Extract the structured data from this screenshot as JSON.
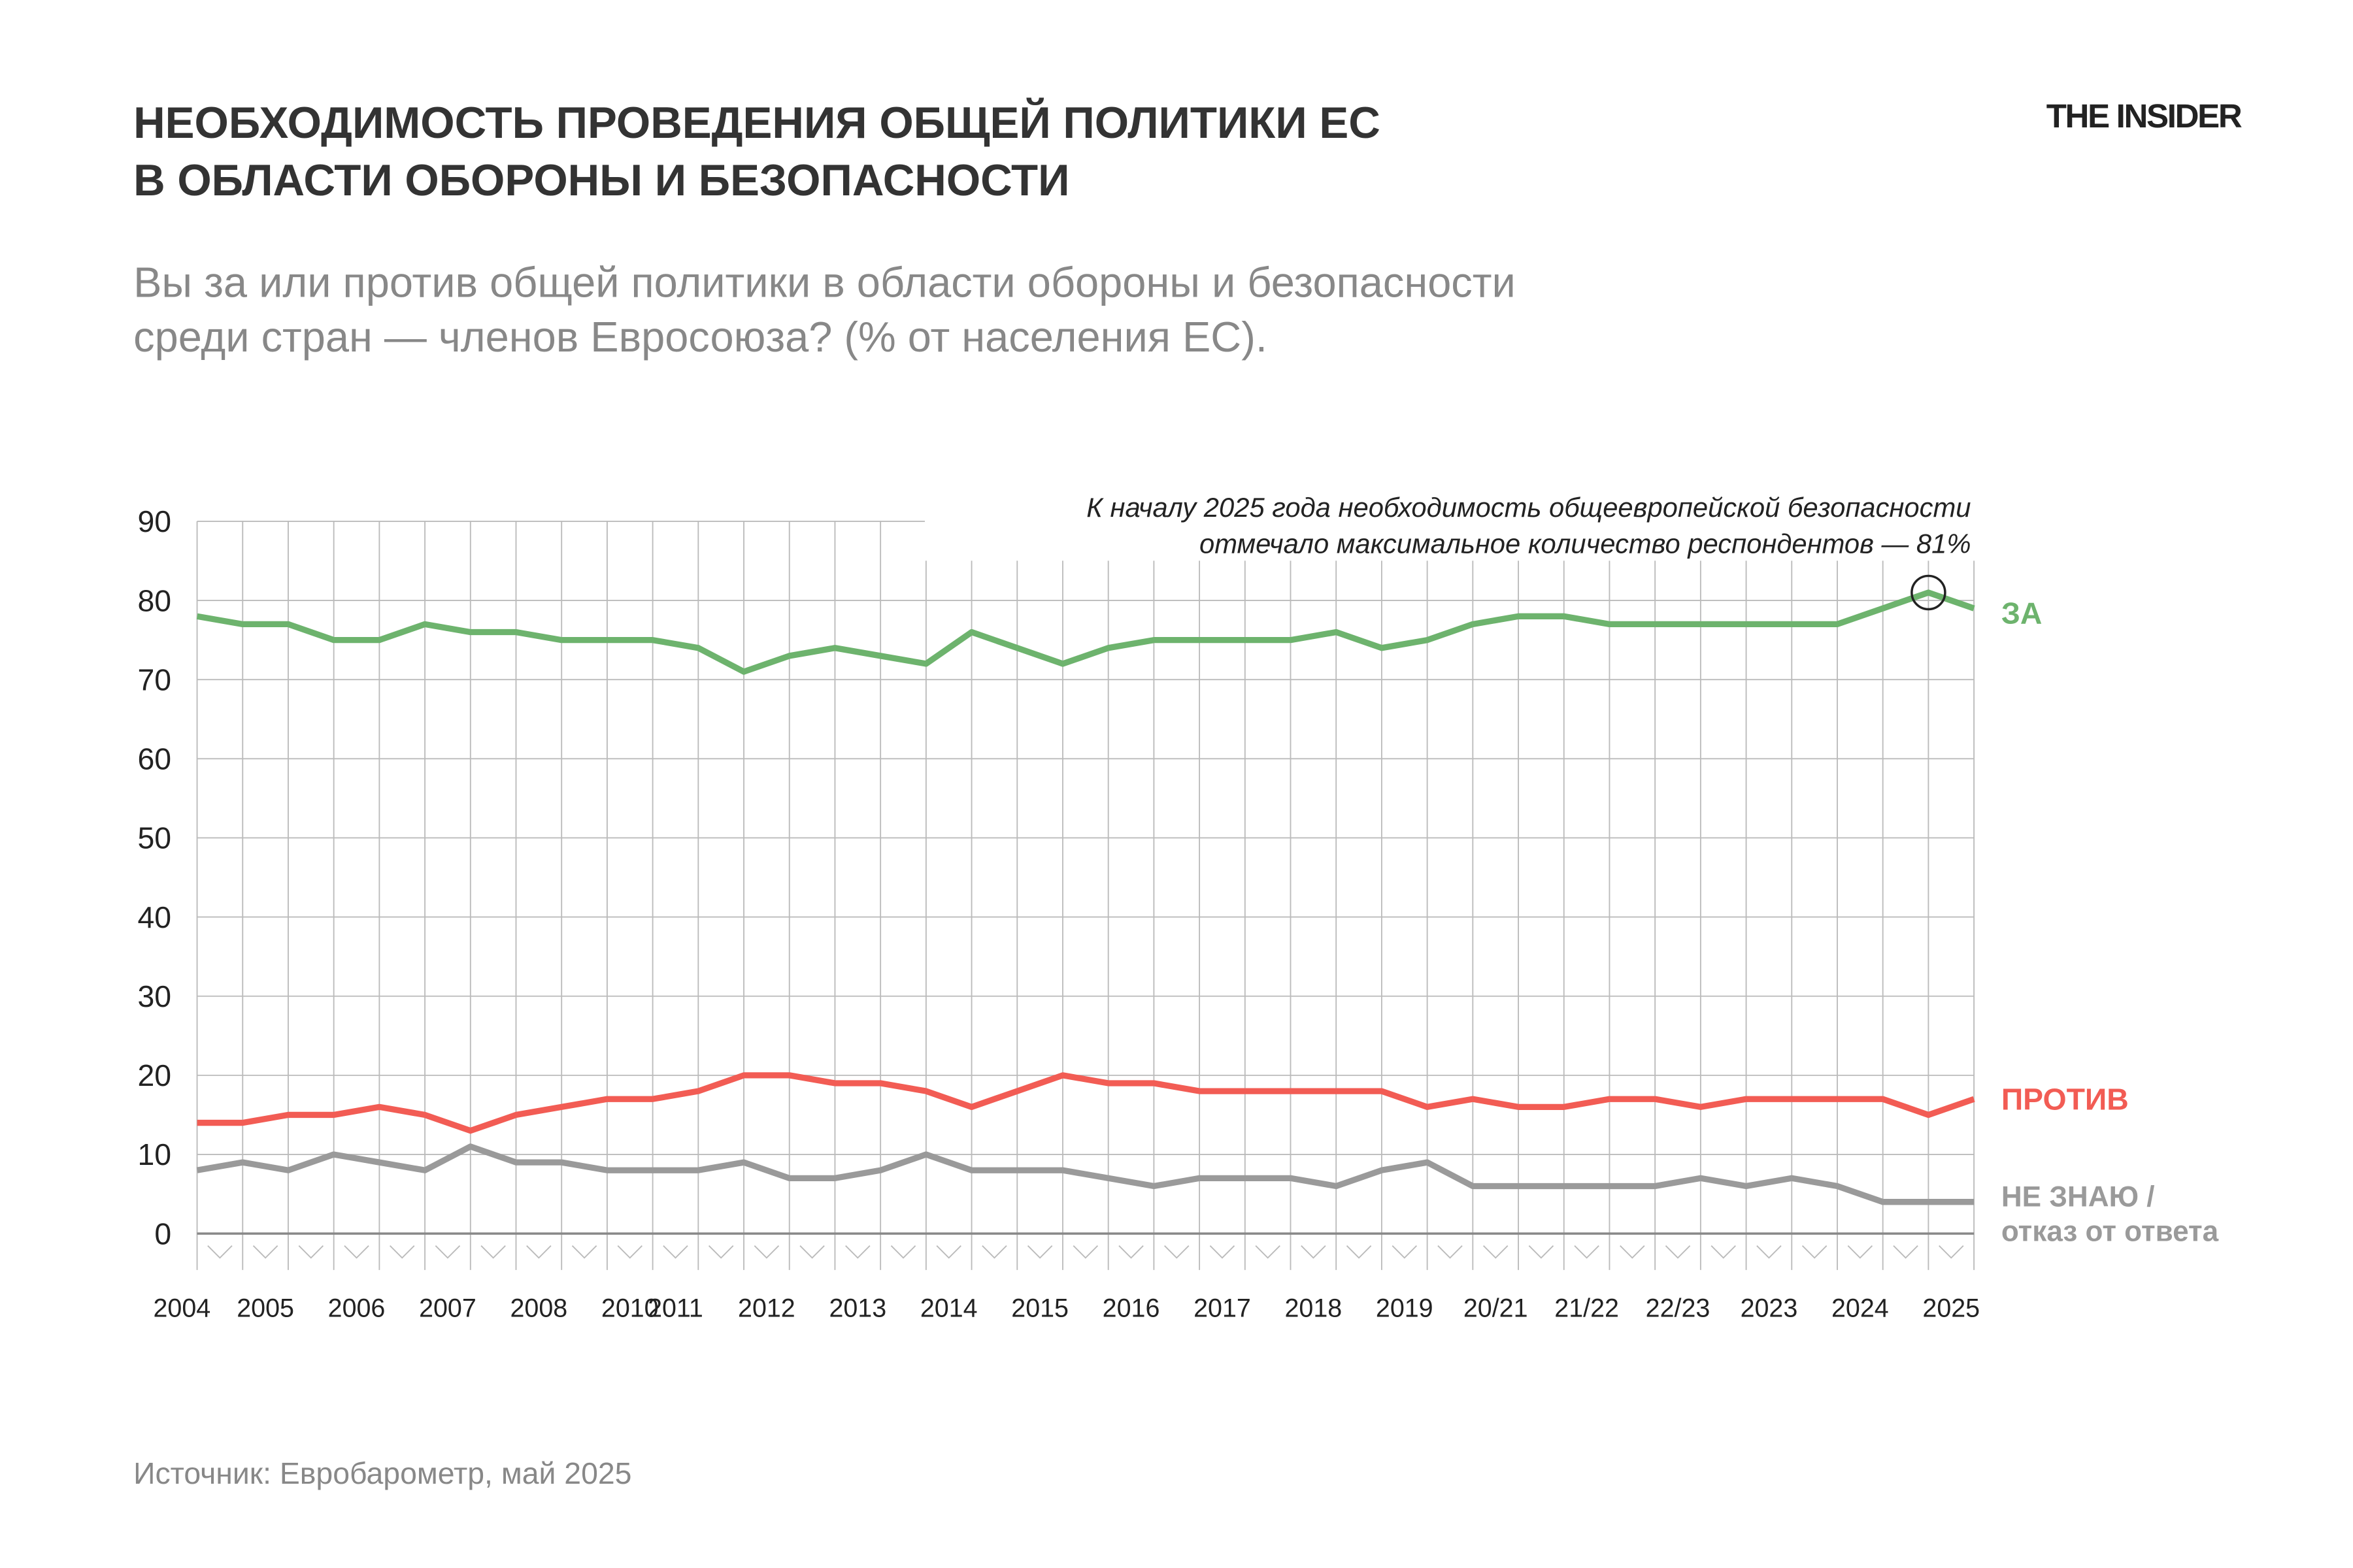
{
  "brand": "THE INSIDER",
  "chart_data": {
    "type": "line",
    "title": [
      "НЕОБХОДИМОСТЬ ПРОВЕДЕНИЯ ОБЩЕЙ ПОЛИТИКИ ЕС",
      "В ОБЛАСТИ ОБОРОНЫ И БЕЗОПАСНОСТИ"
    ],
    "subtitle": [
      "Вы за или против общей политики в области обороны и безопасности",
      "среди стран — членов Евросоюза? (% от населения ЕС)."
    ],
    "annotation": [
      "К началу 2025 года необходимость общеевропейской безопасности",
      "отмечало максимальное количество респондентов — 81%"
    ],
    "source": "Источник: Евробарометр, май 2025",
    "categories": [
      "2004",
      "2005",
      null,
      "2006",
      null,
      "2007",
      null,
      "2008",
      null,
      "2010",
      "2011",
      null,
      "2012",
      null,
      "2013",
      null,
      "2014",
      null,
      "2015",
      null,
      "2016",
      null,
      "2017",
      null,
      "2018",
      null,
      "2019",
      null,
      "20/21",
      null,
      "21/22",
      null,
      "22/23",
      null,
      "2023",
      null,
      "2024",
      null,
      "2025",
      null
    ],
    "series": [
      {
        "name": "ЗА",
        "color": "#6db36d",
        "values": [
          78,
          77,
          77,
          75,
          75,
          77,
          76,
          76,
          75,
          75,
          75,
          74,
          71,
          73,
          74,
          73,
          72,
          76,
          74,
          72,
          74,
          75,
          75,
          75,
          75,
          76,
          74,
          75,
          77,
          78,
          78,
          77,
          77,
          77,
          77,
          77,
          77,
          79,
          81,
          79
        ]
      },
      {
        "name": "ПРОТИВ",
        "color": "#f25c54",
        "values": [
          14,
          14,
          15,
          15,
          16,
          15,
          13,
          15,
          16,
          17,
          17,
          18,
          20,
          20,
          19,
          19,
          18,
          16,
          18,
          20,
          19,
          19,
          18,
          18,
          18,
          18,
          18,
          16,
          17,
          16,
          16,
          17,
          17,
          16,
          17,
          17,
          17,
          17,
          15,
          17
        ]
      },
      {
        "name": "НЕ ЗНАЮ / отказ от ответа",
        "color": "#9a9a9a",
        "values": [
          8,
          9,
          8,
          10,
          9,
          8,
          11,
          9,
          9,
          8,
          8,
          8,
          9,
          7,
          7,
          8,
          10,
          8,
          8,
          8,
          7,
          6,
          7,
          7,
          7,
          6,
          8,
          9,
          6,
          6,
          6,
          6,
          6,
          7,
          6,
          7,
          6,
          4,
          4,
          4
        ]
      }
    ],
    "ylim": [
      0,
      90
    ],
    "yticks": [
      0,
      10,
      20,
      30,
      40,
      50,
      60,
      70,
      80,
      90
    ],
    "grid": true
  }
}
